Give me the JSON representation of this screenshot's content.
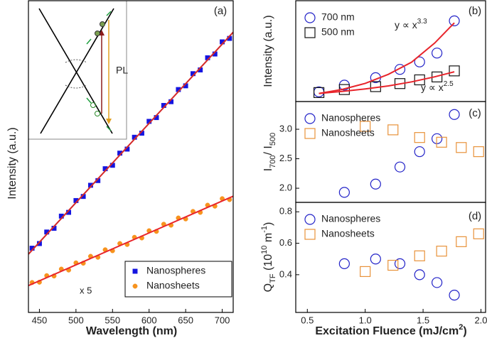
{
  "chart_data": [
    {
      "type": "scatter",
      "panel_label": "(a)",
      "xlabel": "Wavelength (nm)",
      "ylabel": "Intensity (a.u.)",
      "xlim": [
        435,
        715
      ],
      "xticks": [
        450,
        500,
        550,
        600,
        650,
        700
      ],
      "ylim": [
        0,
        100
      ],
      "inset_label": "PL",
      "annotation": "x 5",
      "legend_position": "lower right",
      "legend_frame": true,
      "x": [
        440,
        450,
        460,
        470,
        480,
        490,
        500,
        510,
        520,
        530,
        540,
        550,
        560,
        570,
        580,
        590,
        600,
        610,
        620,
        630,
        640,
        650,
        660,
        670,
        680,
        690,
        700,
        710
      ],
      "series": [
        {
          "name": "Nanospheres",
          "color": "#1414e0",
          "marker": "square",
          "values": [
            20.6,
            22.1,
            25.8,
            27.0,
            30.9,
            32.1,
            35.9,
            37.2,
            40.8,
            42.3,
            46.1,
            47.2,
            51.1,
            52.4,
            56.2,
            57.5,
            61.3,
            62.5,
            66.4,
            67.6,
            71.5,
            72.7,
            76.6,
            77.8,
            81.7,
            82.9,
            86.8,
            87.9
          ]
        },
        {
          "name": "Nanosheets",
          "color": "#f7931e",
          "marker": "circle",
          "values": [
            9.6,
            9.7,
            11.8,
            11.7,
            13.9,
            13.6,
            15.9,
            15.8,
            18.0,
            17.7,
            20.1,
            19.8,
            22.1,
            21.8,
            24.1,
            23.9,
            26.2,
            26.0,
            28.3,
            28.0,
            30.3,
            30.0,
            32.4,
            32.1,
            34.4,
            34.1,
            36.5,
            36.2
          ]
        }
      ],
      "fits": [
        {
          "color": "#d42a2a",
          "x": [
            435,
            715
          ],
          "values": [
            18.7,
            89.9
          ]
        },
        {
          "color": "#e8242b",
          "x": [
            435,
            715
          ],
          "values": [
            8.6,
            37.3
          ]
        }
      ]
    },
    {
      "type": "scatter",
      "panel_label": "(b)",
      "ylabel": "Intensity (a.u.)",
      "xlim": [
        0.4,
        2.04
      ],
      "ylim": [
        0,
        100
      ],
      "legend_position": "upper left",
      "legend_frame": false,
      "series": [
        {
          "name": "700 nm",
          "color": "#2323c8",
          "marker": "open-circle",
          "x": [
            0.6,
            0.82,
            1.09,
            1.3,
            1.47,
            1.62,
            1.77
          ],
          "values": [
            9.6,
            16.3,
            23.7,
            31.9,
            39.3,
            48.1,
            80
          ]
        },
        {
          "name": "500 nm",
          "color": "#111111",
          "marker": "open-square",
          "x": [
            0.6,
            0.82,
            1.09,
            1.3,
            1.47,
            1.62,
            1.77
          ],
          "values": [
            8.9,
            11.9,
            14.8,
            17.8,
            21.5,
            24.4,
            30.4
          ]
        }
      ],
      "fits": [
        {
          "color": "#e8242b",
          "x": [
            0.6,
            0.8,
            1.0,
            1.2,
            1.4,
            1.6,
            1.77
          ],
          "values": [
            8,
            12,
            18,
            27,
            39,
            58,
            78
          ]
        },
        {
          "color": "#e8242b",
          "x": [
            0.6,
            0.8,
            1.0,
            1.2,
            1.4,
            1.6,
            1.77
          ],
          "values": [
            8,
            10,
            12.5,
            15.5,
            19.5,
            24.5,
            29.5
          ]
        }
      ],
      "equations": [
        {
          "text": "y ∝ x",
          "exponent": "3.3"
        },
        {
          "text": "y ∝ x",
          "exponent": "2.5"
        }
      ]
    },
    {
      "type": "scatter",
      "panel_label": "(c)",
      "ylabel_parts": [
        "I",
        "700",
        "/ I",
        "500"
      ],
      "xlim": [
        0.4,
        2.04
      ],
      "ylim": [
        1.76,
        3.47
      ],
      "yticks": [
        {
          "value": 2,
          "label": "2.0"
        },
        2.5,
        {
          "value": 3,
          "label": "3.0"
        }
      ],
      "legend_position": "upper left",
      "legend_frame": false,
      "series": [
        {
          "name": "Nanospheres",
          "color": "#2323c8",
          "marker": "open-circle",
          "x": [
            0.82,
            1.09,
            1.3,
            1.47,
            1.62,
            1.77
          ],
          "values": [
            1.93,
            2.07,
            2.36,
            2.62,
            2.84,
            3.25
          ]
        },
        {
          "name": "Nanosheets",
          "color": "#e8923a",
          "marker": "open-square",
          "x": [
            1.0,
            1.24,
            1.47,
            1.66,
            1.83,
            1.98
          ],
          "values": [
            3.05,
            2.99,
            2.86,
            2.78,
            2.69,
            2.62
          ]
        }
      ]
    },
    {
      "type": "scatter",
      "panel_label": "(d)",
      "ylabel_parts": [
        "Q",
        "TF",
        " (10",
        "10",
        " m",
        "-1",
        ")"
      ],
      "xlabel_parts": [
        "Excitation Fluence (mJ/cm",
        "2",
        ")"
      ],
      "xlim": [
        0.4,
        2.04
      ],
      "xticks": [
        0.5,
        {
          "value": 1,
          "label": "1.0"
        },
        1.5,
        {
          "value": 2,
          "label": "2.0"
        }
      ],
      "ylim": [
        0.16,
        0.86
      ],
      "yticks": [
        0.4,
        0.6,
        0.8
      ],
      "legend_position": "upper left",
      "legend_frame": false,
      "series": [
        {
          "name": "Nanospheres",
          "color": "#2323c8",
          "marker": "open-circle",
          "x": [
            0.82,
            1.09,
            1.3,
            1.47,
            1.62,
            1.77
          ],
          "values": [
            0.47,
            0.5,
            0.47,
            0.4,
            0.35,
            0.27
          ]
        },
        {
          "name": "Nanosheets",
          "color": "#e8923a",
          "marker": "open-square",
          "x": [
            1.0,
            1.24,
            1.47,
            1.66,
            1.83,
            1.98
          ],
          "values": [
            0.42,
            0.46,
            0.52,
            0.55,
            0.61,
            0.66
          ]
        }
      ]
    }
  ]
}
